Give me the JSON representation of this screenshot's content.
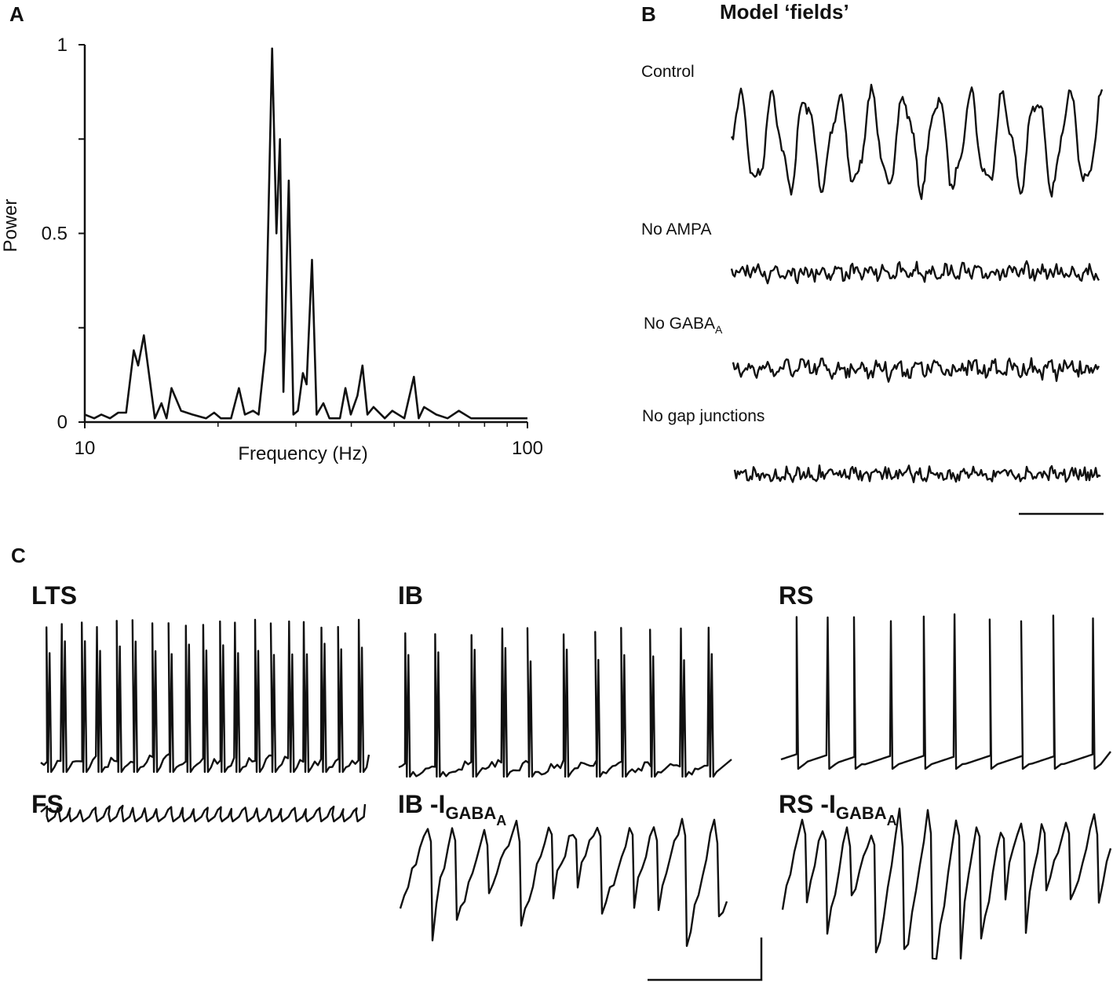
{
  "chart_data": {
    "type": "line",
    "panel_label": "A",
    "xlabel": "Frequency (Hz)",
    "ylabel": "Power",
    "xscale": "log",
    "xlim": [
      10,
      100
    ],
    "xticks": [
      10,
      100
    ],
    "xminorticks": [
      20,
      30,
      40,
      50,
      60,
      70,
      80,
      90
    ],
    "ylim": [
      0,
      1
    ],
    "yticks": [
      0,
      0.5,
      1
    ],
    "yminorticks": [
      0.25,
      0.75
    ],
    "x": [
      10,
      10.5,
      10.9,
      11.4,
      11.9,
      12.4,
      12.9,
      13.2,
      13.6,
      14.4,
      14.9,
      15.3,
      15.7,
      16.5,
      17.5,
      18.8,
      19.6,
      20.3,
      21.4,
      22.3,
      23.0,
      24.0,
      24.7,
      25.6,
      26.5,
      27.1,
      27.6,
      28.1,
      28.9,
      29.6,
      30.3,
      31.1,
      31.7,
      32.6,
      33.4,
      34.6,
      35.7,
      37.7,
      38.8,
      39.9,
      41.3,
      42.4,
      43.5,
      44.9,
      47.6,
      49.5,
      52.7,
      55.4,
      56.8,
      58.4,
      62.2,
      66.0,
      70.0,
      74.6,
      80.8,
      87.6,
      100
    ],
    "series": [
      {
        "color": "#111111",
        "values": [
          0.02,
          0.01,
          0.02,
          0.01,
          0.025,
          0.025,
          0.19,
          0.15,
          0.23,
          0.01,
          0.05,
          0.01,
          0.09,
          0.03,
          0.02,
          0.01,
          0.025,
          0.01,
          0.01,
          0.09,
          0.02,
          0.03,
          0.02,
          0.19,
          0.99,
          0.5,
          0.75,
          0.08,
          0.64,
          0.02,
          0.03,
          0.13,
          0.1,
          0.43,
          0.02,
          0.05,
          0.01,
          0.01,
          0.09,
          0.02,
          0.07,
          0.15,
          0.02,
          0.04,
          0.01,
          0.03,
          0.01,
          0.12,
          0.01,
          0.04,
          0.02,
          0.01,
          0.03,
          0.01,
          0.01,
          0.01,
          0.01
        ]
      }
    ]
  },
  "panel_b": {
    "panel_label": "B",
    "title": "Model ‘fields’",
    "traces": [
      {
        "label": "Control"
      },
      {
        "label": "No AMPA"
      },
      {
        "label": "No GABA",
        "sub": "A"
      },
      {
        "label": "No gap junctions"
      }
    ]
  },
  "panel_c": {
    "panel_label": "C",
    "cells": [
      {
        "label": "LTS"
      },
      {
        "label": "IB"
      },
      {
        "label": "RS"
      },
      {
        "label": "FS"
      },
      {
        "label": "IB -I",
        "sub": "GABA",
        "subsub": "A"
      },
      {
        "label": "RS -I",
        "sub": "GABA",
        "subsub": "A"
      }
    ]
  }
}
